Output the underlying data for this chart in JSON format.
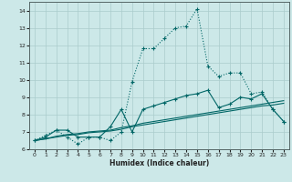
{
  "background_color": "#cce8e8",
  "grid_color": "#aacccc",
  "line_color": "#006666",
  "xlabel": "Humidex (Indice chaleur)",
  "xlim": [
    -0.5,
    23.5
  ],
  "ylim": [
    6.0,
    14.5
  ],
  "yticks": [
    6,
    7,
    8,
    9,
    10,
    11,
    12,
    13,
    14
  ],
  "xticks": [
    0,
    1,
    2,
    3,
    4,
    5,
    6,
    7,
    8,
    9,
    10,
    11,
    12,
    13,
    14,
    15,
    16,
    17,
    18,
    19,
    20,
    21,
    22,
    23
  ],
  "series1_x": [
    0,
    1,
    2,
    3,
    4,
    5,
    6,
    7,
    8,
    9,
    10,
    11,
    12,
    13,
    14,
    15,
    16,
    17,
    18,
    19,
    20,
    21,
    22,
    23
  ],
  "series1_y": [
    6.5,
    6.8,
    7.1,
    6.7,
    6.3,
    6.7,
    6.7,
    6.5,
    7.0,
    9.9,
    11.8,
    11.8,
    12.4,
    13.0,
    13.1,
    14.1,
    10.8,
    10.2,
    10.4,
    10.4,
    9.2,
    9.3,
    8.3,
    7.6
  ],
  "series2_x": [
    0,
    1,
    2,
    3,
    4,
    5,
    6,
    7,
    8,
    9,
    10,
    11,
    12,
    13,
    14,
    15,
    16,
    17,
    18,
    19,
    20,
    21,
    22,
    23
  ],
  "series2_y": [
    6.5,
    6.7,
    7.1,
    7.1,
    6.7,
    6.7,
    6.7,
    7.3,
    8.3,
    7.0,
    8.3,
    8.5,
    8.7,
    8.9,
    9.1,
    9.2,
    9.4,
    8.4,
    8.6,
    9.0,
    8.9,
    9.2,
    8.3,
    7.6
  ],
  "series3_x": [
    0,
    1,
    2,
    3,
    4,
    5,
    6,
    7,
    8,
    9,
    10,
    11,
    12,
    13,
    14,
    15,
    16,
    17,
    18,
    19,
    20,
    21,
    22,
    23
  ],
  "series3_y": [
    6.5,
    6.6,
    6.7,
    6.8,
    6.85,
    6.95,
    7.0,
    7.05,
    7.15,
    7.3,
    7.4,
    7.5,
    7.6,
    7.7,
    7.8,
    7.9,
    8.0,
    8.1,
    8.2,
    8.3,
    8.4,
    8.5,
    8.55,
    8.65
  ],
  "series4_x": [
    0,
    1,
    2,
    3,
    4,
    5,
    6,
    7,
    8,
    9,
    10,
    11,
    12,
    13,
    14,
    15,
    16,
    17,
    18,
    19,
    20,
    21,
    22,
    23
  ],
  "series4_y": [
    6.5,
    6.6,
    6.75,
    6.85,
    6.9,
    7.0,
    7.05,
    7.1,
    7.25,
    7.35,
    7.5,
    7.6,
    7.7,
    7.8,
    7.9,
    8.0,
    8.1,
    8.2,
    8.3,
    8.4,
    8.5,
    8.6,
    8.7,
    8.8
  ]
}
